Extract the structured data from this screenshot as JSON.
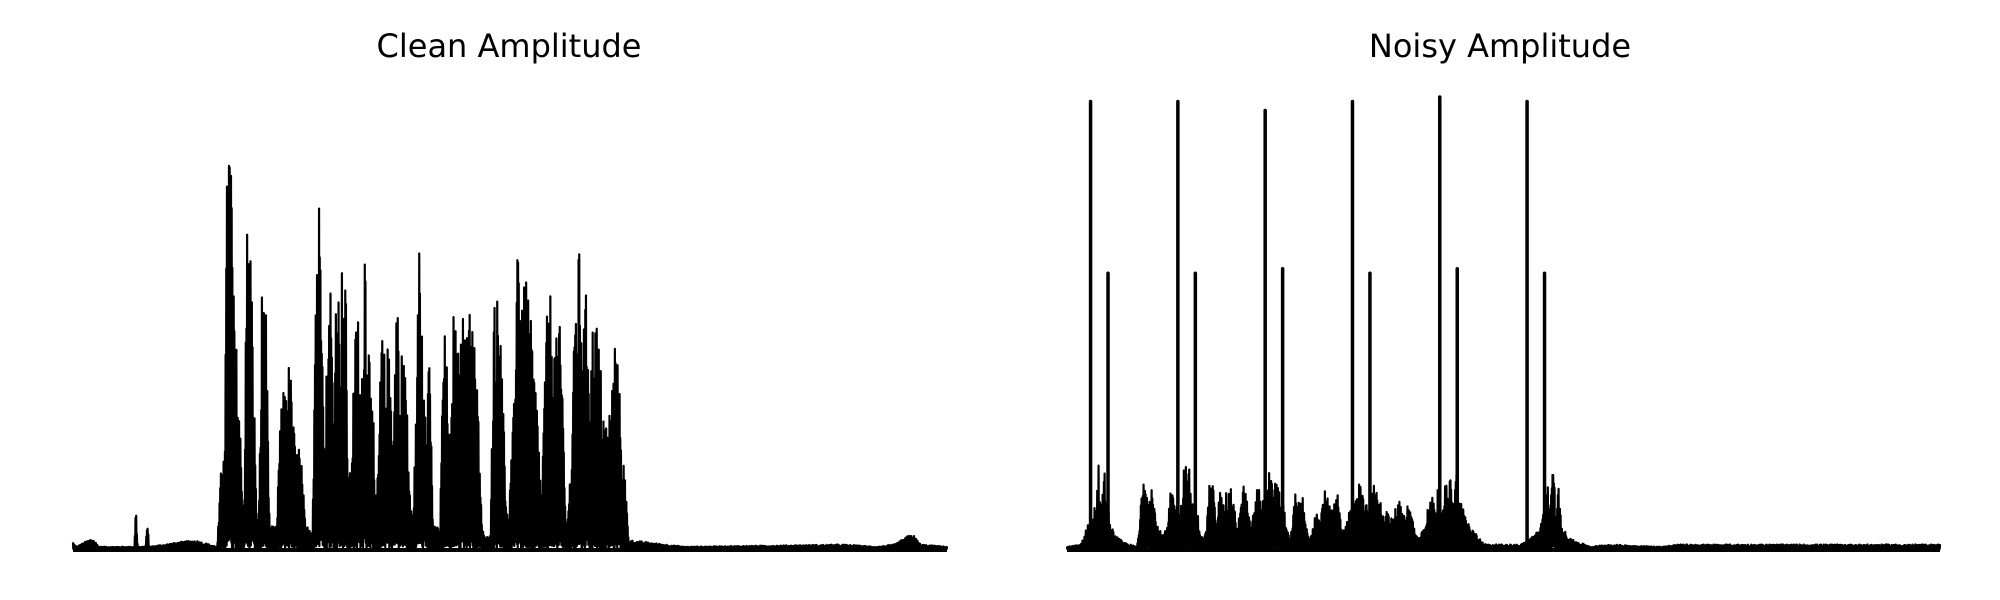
{
  "colors": {
    "background": "#ffffff",
    "line": "#000000"
  },
  "chart_data": [
    {
      "type": "line",
      "title": "Clean Amplitude",
      "xlabel": "",
      "ylabel": "",
      "axes": "off",
      "grid": false,
      "legend": "none",
      "xlim": [
        0,
        1
      ],
      "ylim": [
        0,
        1
      ],
      "envelope": [
        [
          0.0,
          0.015
        ],
        [
          0.004,
          0.005
        ],
        [
          0.022,
          0.025
        ],
        [
          0.03,
          0.005
        ],
        [
          0.07,
          0.005
        ],
        [
          0.072,
          0.1
        ],
        [
          0.074,
          0.005
        ],
        [
          0.083,
          0.005
        ],
        [
          0.085,
          0.08
        ],
        [
          0.087,
          0.005
        ],
        [
          0.11,
          0.012
        ],
        [
          0.14,
          0.02
        ],
        [
          0.165,
          0.005
        ],
        [
          0.17,
          0.2
        ],
        [
          0.174,
          0.35
        ],
        [
          0.177,
          1.0
        ],
        [
          0.181,
          0.92
        ],
        [
          0.184,
          0.55
        ],
        [
          0.187,
          0.45
        ],
        [
          0.19,
          0.35
        ],
        [
          0.193,
          0.18
        ],
        [
          0.196,
          0.1
        ],
        [
          0.198,
          0.7
        ],
        [
          0.201,
          0.76
        ],
        [
          0.204,
          0.65
        ],
        [
          0.207,
          0.4
        ],
        [
          0.21,
          0.05
        ],
        [
          0.213,
          0.1
        ],
        [
          0.216,
          0.58
        ],
        [
          0.219,
          0.65
        ],
        [
          0.222,
          0.45
        ],
        [
          0.225,
          0.05
        ],
        [
          0.233,
          0.05
        ],
        [
          0.236,
          0.25
        ],
        [
          0.24,
          0.35
        ],
        [
          0.244,
          0.4
        ],
        [
          0.248,
          0.42
        ],
        [
          0.252,
          0.3
        ],
        [
          0.255,
          0.2
        ],
        [
          0.258,
          0.25
        ],
        [
          0.262,
          0.18
        ],
        [
          0.266,
          0.05
        ],
        [
          0.274,
          0.05
        ],
        [
          0.278,
          0.7
        ],
        [
          0.281,
          0.8
        ],
        [
          0.285,
          0.76
        ],
        [
          0.288,
          0.2
        ],
        [
          0.291,
          0.5
        ],
        [
          0.295,
          0.62
        ],
        [
          0.298,
          0.3
        ],
        [
          0.302,
          0.72
        ],
        [
          0.305,
          0.5
        ],
        [
          0.309,
          0.7
        ],
        [
          0.312,
          0.6
        ],
        [
          0.315,
          0.15
        ],
        [
          0.318,
          0.18
        ],
        [
          0.322,
          0.45
        ],
        [
          0.326,
          0.55
        ],
        [
          0.33,
          0.3
        ],
        [
          0.334,
          0.76
        ],
        [
          0.338,
          0.48
        ],
        [
          0.342,
          0.5
        ],
        [
          0.346,
          0.05
        ],
        [
          0.35,
          0.25
        ],
        [
          0.353,
          0.5
        ],
        [
          0.357,
          0.42
        ],
        [
          0.36,
          0.45
        ],
        [
          0.364,
          0.4
        ],
        [
          0.367,
          0.3
        ],
        [
          0.371,
          0.68
        ],
        [
          0.374,
          0.3
        ],
        [
          0.377,
          0.5
        ],
        [
          0.38,
          0.45
        ],
        [
          0.384,
          0.2
        ],
        [
          0.388,
          0.05
        ],
        [
          0.392,
          0.25
        ],
        [
          0.396,
          0.69
        ],
        [
          0.4,
          0.52
        ],
        [
          0.404,
          0.35
        ],
        [
          0.408,
          0.48
        ],
        [
          0.412,
          0.05
        ],
        [
          0.42,
          0.05
        ],
        [
          0.424,
          0.52
        ],
        [
          0.428,
          0.4
        ],
        [
          0.432,
          0.2
        ],
        [
          0.436,
          0.58
        ],
        [
          0.44,
          0.4
        ],
        [
          0.444,
          0.62
        ],
        [
          0.448,
          0.45
        ],
        [
          0.452,
          0.65
        ],
        [
          0.456,
          0.55
        ],
        [
          0.46,
          0.45
        ],
        [
          0.464,
          0.3
        ],
        [
          0.468,
          0.05
        ],
        [
          0.472,
          0.02
        ],
        [
          0.478,
          0.05
        ],
        [
          0.482,
          0.64
        ],
        [
          0.486,
          0.55
        ],
        [
          0.49,
          0.6
        ],
        [
          0.494,
          0.18
        ],
        [
          0.498,
          0.05
        ],
        [
          0.504,
          0.3
        ],
        [
          0.508,
          0.76
        ],
        [
          0.512,
          0.68
        ],
        [
          0.516,
          0.58
        ],
        [
          0.52,
          0.62
        ],
        [
          0.524,
          0.5
        ],
        [
          0.528,
          0.4
        ],
        [
          0.532,
          0.3
        ],
        [
          0.536,
          0.1
        ],
        [
          0.54,
          0.4
        ],
        [
          0.544,
          0.6
        ],
        [
          0.548,
          0.55
        ],
        [
          0.552,
          0.45
        ],
        [
          0.556,
          0.52
        ],
        [
          0.56,
          0.4
        ],
        [
          0.564,
          0.05
        ],
        [
          0.57,
          0.2
        ],
        [
          0.575,
          0.59
        ],
        [
          0.58,
          0.68
        ],
        [
          0.584,
          0.5
        ],
        [
          0.588,
          0.59
        ],
        [
          0.592,
          0.4
        ],
        [
          0.596,
          0.56
        ],
        [
          0.6,
          0.5
        ],
        [
          0.604,
          0.4
        ],
        [
          0.608,
          0.3
        ],
        [
          0.612,
          0.28
        ],
        [
          0.616,
          0.35
        ],
        [
          0.62,
          0.48
        ],
        [
          0.624,
          0.4
        ],
        [
          0.628,
          0.25
        ],
        [
          0.632,
          0.15
        ],
        [
          0.636,
          0.02
        ],
        [
          0.7,
          0.005
        ],
        [
          0.88,
          0.01
        ],
        [
          0.92,
          0.005
        ],
        [
          0.94,
          0.01
        ],
        [
          0.96,
          0.035
        ],
        [
          0.97,
          0.01
        ],
        [
          1.0,
          0.005
        ]
      ]
    },
    {
      "type": "line",
      "title": "Noisy Amplitude",
      "xlabel": "",
      "ylabel": "",
      "axes": "off",
      "grid": false,
      "legend": "none",
      "xlim": [
        0,
        1
      ],
      "ylim": [
        0,
        1
      ],
      "spikes": [
        {
          "x": 0.027,
          "y": 0.99
        },
        {
          "x": 0.047,
          "y": 0.61
        },
        {
          "x": 0.127,
          "y": 0.99
        },
        {
          "x": 0.147,
          "y": 0.61
        },
        {
          "x": 0.227,
          "y": 0.97
        },
        {
          "x": 0.247,
          "y": 0.62
        },
        {
          "x": 0.327,
          "y": 0.99
        },
        {
          "x": 0.347,
          "y": 0.61
        },
        {
          "x": 0.427,
          "y": 1.0
        },
        {
          "x": 0.447,
          "y": 0.62
        },
        {
          "x": 0.527,
          "y": 0.99
        },
        {
          "x": 0.547,
          "y": 0.61
        }
      ],
      "envelope": [
        [
          0.0,
          0.005
        ],
        [
          0.015,
          0.01
        ],
        [
          0.02,
          0.03
        ],
        [
          0.024,
          0.06
        ],
        [
          0.03,
          0.08
        ],
        [
          0.034,
          0.12
        ],
        [
          0.036,
          0.2
        ],
        [
          0.038,
          0.09
        ],
        [
          0.041,
          0.13
        ],
        [
          0.043,
          0.18
        ],
        [
          0.046,
          0.1
        ],
        [
          0.05,
          0.06
        ],
        [
          0.055,
          0.03
        ],
        [
          0.065,
          0.015
        ],
        [
          0.08,
          0.005
        ],
        [
          0.083,
          0.05
        ],
        [
          0.087,
          0.19
        ],
        [
          0.091,
          0.16
        ],
        [
          0.094,
          0.12
        ],
        [
          0.097,
          0.15
        ],
        [
          0.1,
          0.1
        ],
        [
          0.104,
          0.05
        ],
        [
          0.11,
          0.03
        ],
        [
          0.115,
          0.05
        ],
        [
          0.118,
          0.12
        ],
        [
          0.121,
          0.14
        ],
        [
          0.125,
          0.09
        ],
        [
          0.129,
          0.12
        ],
        [
          0.132,
          0.13
        ],
        [
          0.135,
          0.23
        ],
        [
          0.138,
          0.16
        ],
        [
          0.141,
          0.19
        ],
        [
          0.143,
          0.1
        ],
        [
          0.148,
          0.1
        ],
        [
          0.152,
          0.05
        ],
        [
          0.156,
          0.02
        ],
        [
          0.16,
          0.05
        ],
        [
          0.163,
          0.15
        ],
        [
          0.167,
          0.15
        ],
        [
          0.171,
          0.05
        ],
        [
          0.175,
          0.13
        ],
        [
          0.179,
          0.14
        ],
        [
          0.183,
          0.12
        ],
        [
          0.187,
          0.14
        ],
        [
          0.191,
          0.1
        ],
        [
          0.195,
          0.05
        ],
        [
          0.199,
          0.1
        ],
        [
          0.203,
          0.15
        ],
        [
          0.207,
          0.1
        ],
        [
          0.21,
          0.05
        ],
        [
          0.215,
          0.1
        ],
        [
          0.219,
          0.15
        ],
        [
          0.223,
          0.12
        ],
        [
          0.226,
          0.1
        ],
        [
          0.23,
          0.14
        ],
        [
          0.233,
          0.2
        ],
        [
          0.236,
          0.1
        ],
        [
          0.24,
          0.19
        ],
        [
          0.244,
          0.12
        ],
        [
          0.248,
          0.1
        ],
        [
          0.252,
          0.05
        ],
        [
          0.255,
          0.02
        ],
        [
          0.258,
          0.05
        ],
        [
          0.262,
          0.14
        ],
        [
          0.266,
          0.1
        ],
        [
          0.27,
          0.12
        ],
        [
          0.274,
          0.05
        ],
        [
          0.278,
          0.02
        ],
        [
          0.282,
          0.05
        ],
        [
          0.286,
          0.11
        ],
        [
          0.29,
          0.05
        ],
        [
          0.294,
          0.13
        ],
        [
          0.298,
          0.13
        ],
        [
          0.302,
          0.08
        ],
        [
          0.306,
          0.13
        ],
        [
          0.31,
          0.12
        ],
        [
          0.314,
          0.05
        ],
        [
          0.318,
          0.04
        ],
        [
          0.322,
          0.08
        ],
        [
          0.326,
          0.12
        ],
        [
          0.33,
          0.1
        ],
        [
          0.334,
          0.18
        ],
        [
          0.338,
          0.12
        ],
        [
          0.342,
          0.1
        ],
        [
          0.346,
          0.09
        ],
        [
          0.35,
          0.15
        ],
        [
          0.354,
          0.13
        ],
        [
          0.358,
          0.12
        ],
        [
          0.362,
          0.08
        ],
        [
          0.366,
          0.1
        ],
        [
          0.37,
          0.06
        ],
        [
          0.374,
          0.08
        ],
        [
          0.378,
          0.1
        ],
        [
          0.382,
          0.12
        ],
        [
          0.386,
          0.08
        ],
        [
          0.39,
          0.1
        ],
        [
          0.394,
          0.09
        ],
        [
          0.398,
          0.05
        ],
        [
          0.402,
          0.02
        ],
        [
          0.41,
          0.05
        ],
        [
          0.414,
          0.1
        ],
        [
          0.418,
          0.12
        ],
        [
          0.422,
          0.1
        ],
        [
          0.425,
          0.14
        ],
        [
          0.428,
          0.09
        ],
        [
          0.431,
          0.1
        ],
        [
          0.434,
          0.16
        ],
        [
          0.437,
          0.11
        ],
        [
          0.44,
          0.2
        ],
        [
          0.443,
          0.12
        ],
        [
          0.446,
          0.19
        ],
        [
          0.449,
          0.13
        ],
        [
          0.452,
          0.1
        ],
        [
          0.455,
          0.09
        ],
        [
          0.458,
          0.07
        ],
        [
          0.462,
          0.05
        ],
        [
          0.47,
          0.03
        ],
        [
          0.48,
          0.01
        ],
        [
          0.52,
          0.01
        ],
        [
          0.54,
          0.04
        ],
        [
          0.545,
          0.08
        ],
        [
          0.548,
          0.12
        ],
        [
          0.551,
          0.15
        ],
        [
          0.554,
          0.1
        ],
        [
          0.557,
          0.2
        ],
        [
          0.56,
          0.08
        ],
        [
          0.563,
          0.14
        ],
        [
          0.566,
          0.06
        ],
        [
          0.57,
          0.04
        ],
        [
          0.58,
          0.02
        ],
        [
          0.6,
          0.005
        ],
        [
          0.62,
          0.01
        ],
        [
          0.68,
          0.005
        ],
        [
          0.7,
          0.01
        ]
      ]
    }
  ]
}
